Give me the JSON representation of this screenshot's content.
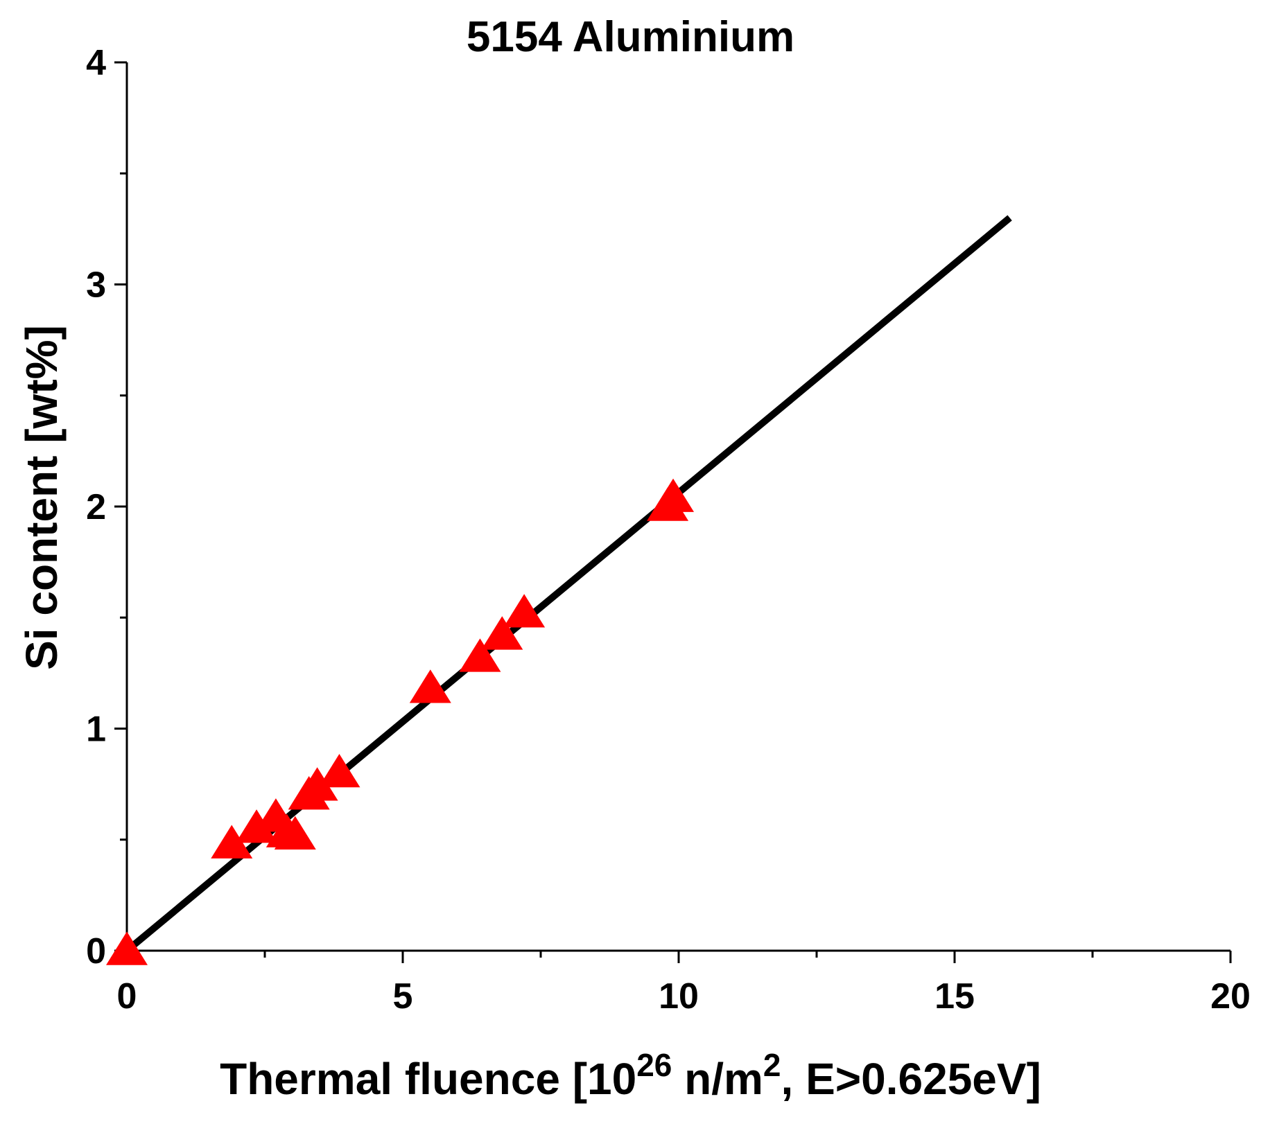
{
  "chart_data": {
    "type": "scatter",
    "title": "5154 Aluminium",
    "xlabel": {
      "prefix": "Thermal fluence [10",
      "sup1": "26",
      "middle": " n/m",
      "sup2": "2",
      "suffix": ", E>0.625eV]"
    },
    "ylabel": "Si content [wt%]",
    "xlim": [
      0,
      20
    ],
    "ylim": [
      0,
      4
    ],
    "xticks": [
      0,
      5,
      10,
      15,
      20
    ],
    "yticks": [
      0,
      1,
      2,
      3,
      4
    ],
    "grid": false,
    "series": [
      {
        "marker": "triangle-up",
        "color": "#ff0000",
        "points": [
          [
            0.0,
            0.0
          ],
          [
            1.9,
            0.48
          ],
          [
            2.35,
            0.55
          ],
          [
            2.7,
            0.6
          ],
          [
            2.9,
            0.53
          ],
          [
            3.05,
            0.52
          ],
          [
            3.3,
            0.7
          ],
          [
            3.45,
            0.74
          ],
          [
            3.85,
            0.8
          ],
          [
            5.5,
            1.18
          ],
          [
            6.4,
            1.32
          ],
          [
            6.8,
            1.42
          ],
          [
            7.2,
            1.52
          ],
          [
            9.8,
            2.0
          ],
          [
            9.9,
            2.04
          ]
        ]
      }
    ],
    "fit_line": {
      "color": "#000000",
      "points": [
        [
          0.0,
          0.0
        ],
        [
          16.0,
          3.3
        ]
      ]
    }
  }
}
